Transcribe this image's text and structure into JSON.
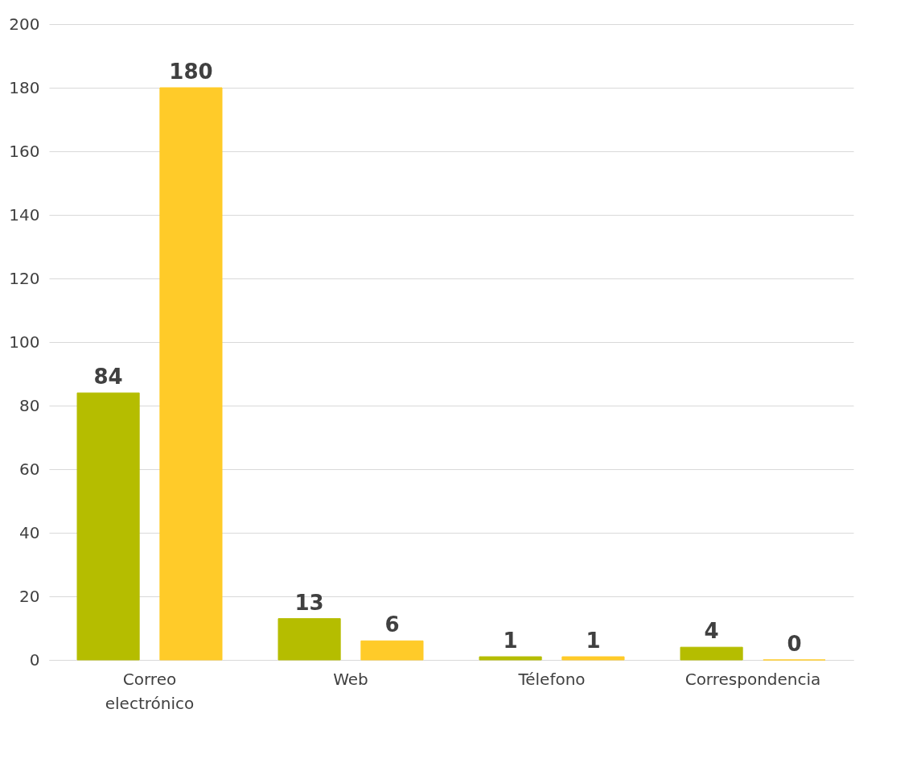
{
  "chart_data": {
    "type": "bar",
    "categories": [
      "Correo electrónico",
      "Web",
      "Télefono",
      "Correspondencia"
    ],
    "series": [
      {
        "color": "#b5bd00",
        "values": [
          84,
          13,
          1,
          4
        ]
      },
      {
        "color": "#ffcb29",
        "values": [
          180,
          6,
          1,
          0
        ]
      }
    ],
    "ylim": [
      0,
      200
    ],
    "yticks": [
      0,
      20,
      40,
      60,
      80,
      100,
      120,
      140,
      160,
      180,
      200
    ],
    "grid": "y",
    "legend": false,
    "data_labels": true
  }
}
